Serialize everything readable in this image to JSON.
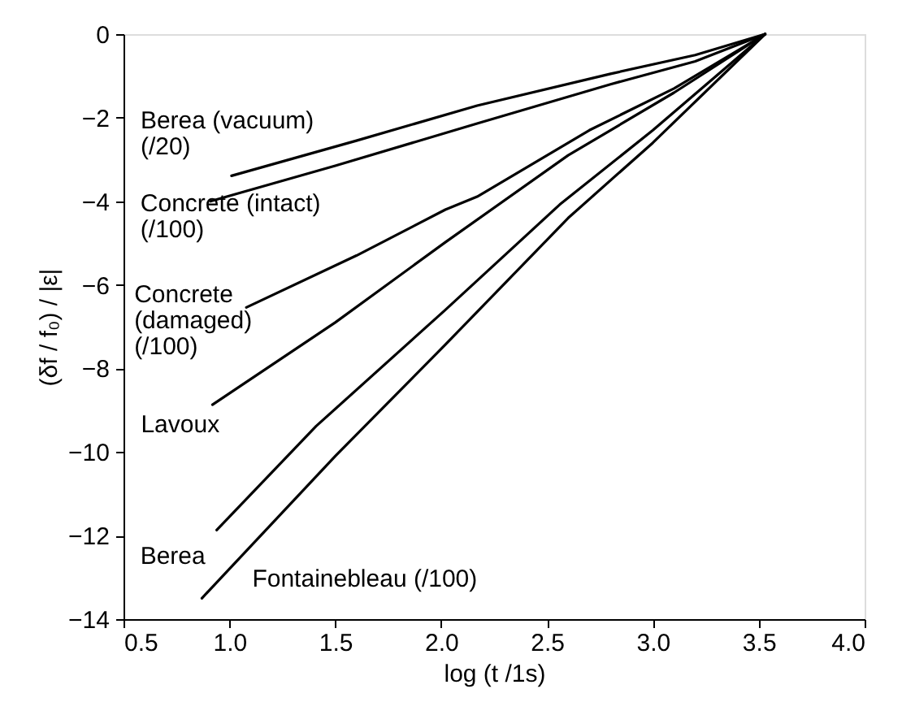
{
  "chart_data": {
    "type": "line",
    "xlabel": "log (t /1s)",
    "ylabel": "(δf / f₀) / |ε|",
    "xlim": [
      0.5,
      4.0
    ],
    "xticks": [
      {
        "value": 0.5,
        "label": "0.5"
      },
      {
        "value": 1.0,
        "label": "1.0"
      },
      {
        "value": 1.5,
        "label": "1.5"
      },
      {
        "value": 2.0,
        "label": "2.0"
      },
      {
        "value": 2.5,
        "label": "2.5"
      },
      {
        "value": 3.0,
        "label": "3.0"
      },
      {
        "value": 3.5,
        "label": "3.5"
      },
      {
        "value": 4.0,
        "label": "4.0"
      }
    ],
    "ylim": [
      -14,
      0
    ],
    "yticks": [
      -14,
      -12,
      -10,
      -8,
      -6,
      -4,
      -2,
      0
    ],
    "grid": false,
    "marker": "none",
    "line_style": "solid",
    "series": [
      {
        "name": "Berea (vacuum)\n(/20)",
        "color": "#000000",
        "x": [
          1.01,
          1.6,
          2.17,
          2.8,
          3.2,
          3.53
        ],
        "values": [
          -3.39,
          -2.55,
          -1.71,
          -0.95,
          -0.5,
          0
        ]
      },
      {
        "name": "Concrete (intact)\n(/100)",
        "color": "#000000",
        "x": [
          0.91,
          1.5,
          2.17,
          2.8,
          3.2,
          3.53
        ],
        "values": [
          -4.0,
          -3.15,
          -2.14,
          -1.2,
          -0.65,
          0
        ]
      },
      {
        "name": "Concrete\n(damaged)\n(/100)",
        "color": "#000000",
        "x": [
          1.08,
          1.6,
          2.02,
          2.17,
          2.7,
          3.1,
          3.53
        ],
        "values": [
          -6.54,
          -5.3,
          -4.2,
          -3.89,
          -2.3,
          -1.3,
          0
        ]
      },
      {
        "name": "Lavoux",
        "color": "#000000",
        "x": [
          0.92,
          1.5,
          2.02,
          2.6,
          3.1,
          3.53
        ],
        "values": [
          -8.87,
          -6.9,
          -4.98,
          -2.9,
          -1.4,
          0
        ]
      },
      {
        "name": "Berea",
        "color": "#000000",
        "x": [
          0.94,
          1.41,
          2.02,
          2.56,
          3.0,
          3.53
        ],
        "values": [
          -11.87,
          -9.38,
          -6.6,
          -4.08,
          -2.3,
          0
        ]
      },
      {
        "name": "Fontainebleau (/100)",
        "color": "#000000",
        "x": [
          0.87,
          1.5,
          2.02,
          2.6,
          3.0,
          3.53
        ],
        "values": [
          -13.5,
          -10.1,
          -7.43,
          -4.4,
          -2.6,
          0
        ]
      }
    ]
  }
}
